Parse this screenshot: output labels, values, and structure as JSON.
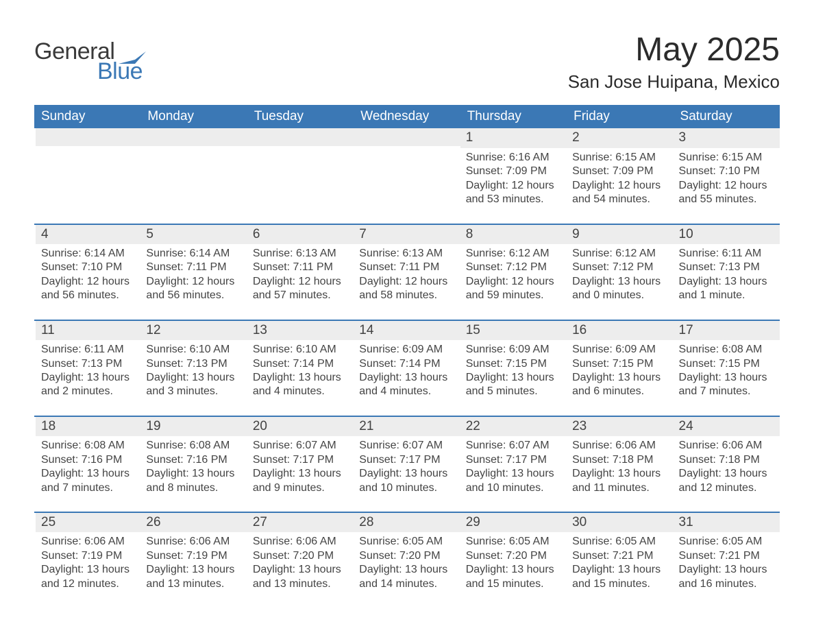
{
  "logo": {
    "word1": "General",
    "word2": "Blue",
    "swoosh_color": "#3b78b5"
  },
  "title": "May 2025",
  "location": "San Jose Huipana, Mexico",
  "colors": {
    "accent": "#3b78b5",
    "header_bg": "#3b78b5",
    "header_text": "#ffffff",
    "row_separator": "#3b78b5",
    "daynum_bg": "#ededed",
    "daynum_color": "#424242",
    "body_text": "#333333",
    "page_bg": "#ffffff"
  },
  "typography": {
    "title_fontsize_pt": 36,
    "location_fontsize_pt": 20,
    "header_fontsize_pt": 14,
    "daynum_fontsize_pt": 14,
    "body_fontsize_pt": 12,
    "font_family": "Arial"
  },
  "weekday_headers": [
    "Sunday",
    "Monday",
    "Tuesday",
    "Wednesday",
    "Thursday",
    "Friday",
    "Saturday"
  ],
  "weeks": [
    [
      {
        "day": "",
        "blank": true
      },
      {
        "day": "",
        "blank": true
      },
      {
        "day": "",
        "blank": true
      },
      {
        "day": "",
        "blank": true
      },
      {
        "day": "1",
        "sunrise": "Sunrise: 6:16 AM",
        "sunset": "Sunset: 7:09 PM",
        "daylight": "Daylight: 12 hours and 53 minutes."
      },
      {
        "day": "2",
        "sunrise": "Sunrise: 6:15 AM",
        "sunset": "Sunset: 7:09 PM",
        "daylight": "Daylight: 12 hours and 54 minutes."
      },
      {
        "day": "3",
        "sunrise": "Sunrise: 6:15 AM",
        "sunset": "Sunset: 7:10 PM",
        "daylight": "Daylight: 12 hours and 55 minutes."
      }
    ],
    [
      {
        "day": "4",
        "sunrise": "Sunrise: 6:14 AM",
        "sunset": "Sunset: 7:10 PM",
        "daylight": "Daylight: 12 hours and 56 minutes."
      },
      {
        "day": "5",
        "sunrise": "Sunrise: 6:14 AM",
        "sunset": "Sunset: 7:11 PM",
        "daylight": "Daylight: 12 hours and 56 minutes."
      },
      {
        "day": "6",
        "sunrise": "Sunrise: 6:13 AM",
        "sunset": "Sunset: 7:11 PM",
        "daylight": "Daylight: 12 hours and 57 minutes."
      },
      {
        "day": "7",
        "sunrise": "Sunrise: 6:13 AM",
        "sunset": "Sunset: 7:11 PM",
        "daylight": "Daylight: 12 hours and 58 minutes."
      },
      {
        "day": "8",
        "sunrise": "Sunrise: 6:12 AM",
        "sunset": "Sunset: 7:12 PM",
        "daylight": "Daylight: 12 hours and 59 minutes."
      },
      {
        "day": "9",
        "sunrise": "Sunrise: 6:12 AM",
        "sunset": "Sunset: 7:12 PM",
        "daylight": "Daylight: 13 hours and 0 minutes."
      },
      {
        "day": "10",
        "sunrise": "Sunrise: 6:11 AM",
        "sunset": "Sunset: 7:13 PM",
        "daylight": "Daylight: 13 hours and 1 minute."
      }
    ],
    [
      {
        "day": "11",
        "sunrise": "Sunrise: 6:11 AM",
        "sunset": "Sunset: 7:13 PM",
        "daylight": "Daylight: 13 hours and 2 minutes."
      },
      {
        "day": "12",
        "sunrise": "Sunrise: 6:10 AM",
        "sunset": "Sunset: 7:13 PM",
        "daylight": "Daylight: 13 hours and 3 minutes."
      },
      {
        "day": "13",
        "sunrise": "Sunrise: 6:10 AM",
        "sunset": "Sunset: 7:14 PM",
        "daylight": "Daylight: 13 hours and 4 minutes."
      },
      {
        "day": "14",
        "sunrise": "Sunrise: 6:09 AM",
        "sunset": "Sunset: 7:14 PM",
        "daylight": "Daylight: 13 hours and 4 minutes."
      },
      {
        "day": "15",
        "sunrise": "Sunrise: 6:09 AM",
        "sunset": "Sunset: 7:15 PM",
        "daylight": "Daylight: 13 hours and 5 minutes."
      },
      {
        "day": "16",
        "sunrise": "Sunrise: 6:09 AM",
        "sunset": "Sunset: 7:15 PM",
        "daylight": "Daylight: 13 hours and 6 minutes."
      },
      {
        "day": "17",
        "sunrise": "Sunrise: 6:08 AM",
        "sunset": "Sunset: 7:15 PM",
        "daylight": "Daylight: 13 hours and 7 minutes."
      }
    ],
    [
      {
        "day": "18",
        "sunrise": "Sunrise: 6:08 AM",
        "sunset": "Sunset: 7:16 PM",
        "daylight": "Daylight: 13 hours and 7 minutes."
      },
      {
        "day": "19",
        "sunrise": "Sunrise: 6:08 AM",
        "sunset": "Sunset: 7:16 PM",
        "daylight": "Daylight: 13 hours and 8 minutes."
      },
      {
        "day": "20",
        "sunrise": "Sunrise: 6:07 AM",
        "sunset": "Sunset: 7:17 PM",
        "daylight": "Daylight: 13 hours and 9 minutes."
      },
      {
        "day": "21",
        "sunrise": "Sunrise: 6:07 AM",
        "sunset": "Sunset: 7:17 PM",
        "daylight": "Daylight: 13 hours and 10 minutes."
      },
      {
        "day": "22",
        "sunrise": "Sunrise: 6:07 AM",
        "sunset": "Sunset: 7:17 PM",
        "daylight": "Daylight: 13 hours and 10 minutes."
      },
      {
        "day": "23",
        "sunrise": "Sunrise: 6:06 AM",
        "sunset": "Sunset: 7:18 PM",
        "daylight": "Daylight: 13 hours and 11 minutes."
      },
      {
        "day": "24",
        "sunrise": "Sunrise: 6:06 AM",
        "sunset": "Sunset: 7:18 PM",
        "daylight": "Daylight: 13 hours and 12 minutes."
      }
    ],
    [
      {
        "day": "25",
        "sunrise": "Sunrise: 6:06 AM",
        "sunset": "Sunset: 7:19 PM",
        "daylight": "Daylight: 13 hours and 12 minutes."
      },
      {
        "day": "26",
        "sunrise": "Sunrise: 6:06 AM",
        "sunset": "Sunset: 7:19 PM",
        "daylight": "Daylight: 13 hours and 13 minutes."
      },
      {
        "day": "27",
        "sunrise": "Sunrise: 6:06 AM",
        "sunset": "Sunset: 7:20 PM",
        "daylight": "Daylight: 13 hours and 13 minutes."
      },
      {
        "day": "28",
        "sunrise": "Sunrise: 6:05 AM",
        "sunset": "Sunset: 7:20 PM",
        "daylight": "Daylight: 13 hours and 14 minutes."
      },
      {
        "day": "29",
        "sunrise": "Sunrise: 6:05 AM",
        "sunset": "Sunset: 7:20 PM",
        "daylight": "Daylight: 13 hours and 15 minutes."
      },
      {
        "day": "30",
        "sunrise": "Sunrise: 6:05 AM",
        "sunset": "Sunset: 7:21 PM",
        "daylight": "Daylight: 13 hours and 15 minutes."
      },
      {
        "day": "31",
        "sunrise": "Sunrise: 6:05 AM",
        "sunset": "Sunset: 7:21 PM",
        "daylight": "Daylight: 13 hours and 16 minutes."
      }
    ]
  ]
}
